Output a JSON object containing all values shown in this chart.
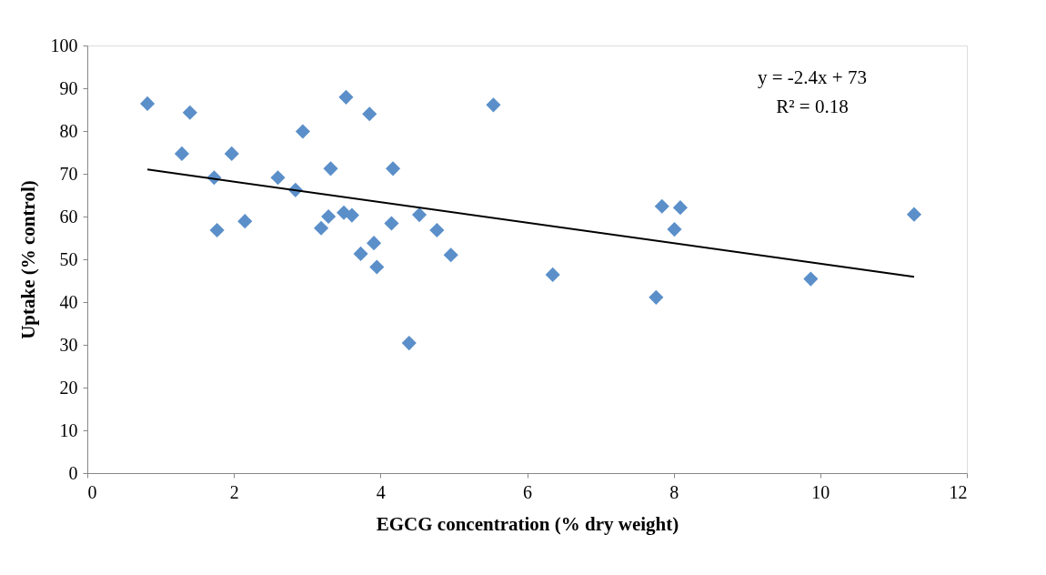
{
  "chart_data": {
    "type": "scatter",
    "xlabel": "EGCG concentration (% dry weight)",
    "ylabel": "Uptake (% control)",
    "xlim": [
      0,
      12
    ],
    "xticks": [
      0,
      2,
      4,
      6,
      8,
      10,
      12
    ],
    "ylim": [
      0,
      100
    ],
    "yticks": [
      0,
      10,
      20,
      30,
      40,
      50,
      60,
      70,
      80,
      90,
      100
    ],
    "grid": false,
    "annotations": [
      "y = -2.4x + 73",
      "R² = 0.18"
    ],
    "series": [
      {
        "marker": "diamond",
        "color": "#5b8fc9",
        "x": [
          0.82,
          1.4,
          1.29,
          1.97,
          1.73,
          1.77,
          2.15,
          2.6,
          2.84,
          2.94,
          3.32,
          3.19,
          3.29,
          3.5,
          3.61,
          3.53,
          3.85,
          3.73,
          3.91,
          3.95,
          4.17,
          4.15,
          4.39,
          4.53,
          4.77,
          4.96,
          5.54,
          6.35,
          7.84,
          8.09,
          8.01,
          7.76,
          9.87,
          11.28
        ],
        "values": [
          86.4,
          84.3,
          74.7,
          74.7,
          69.1,
          56.8,
          58.9,
          69.1,
          66.2,
          79.9,
          71.2,
          57.3,
          60.0,
          60.9,
          60.3,
          87.9,
          84.0,
          51.3,
          53.8,
          48.2,
          71.2,
          58.4,
          30.4,
          60.4,
          56.8,
          51.0,
          86.1,
          46.4,
          62.4,
          62.1,
          57.0,
          41.1,
          45.4,
          60.5
        ]
      },
      {
        "type": "line",
        "line_style": "solid",
        "marker": "none",
        "color": "#000000",
        "x": [
          0.82,
          11.28
        ],
        "values": [
          71.0,
          45.9
        ]
      }
    ]
  }
}
